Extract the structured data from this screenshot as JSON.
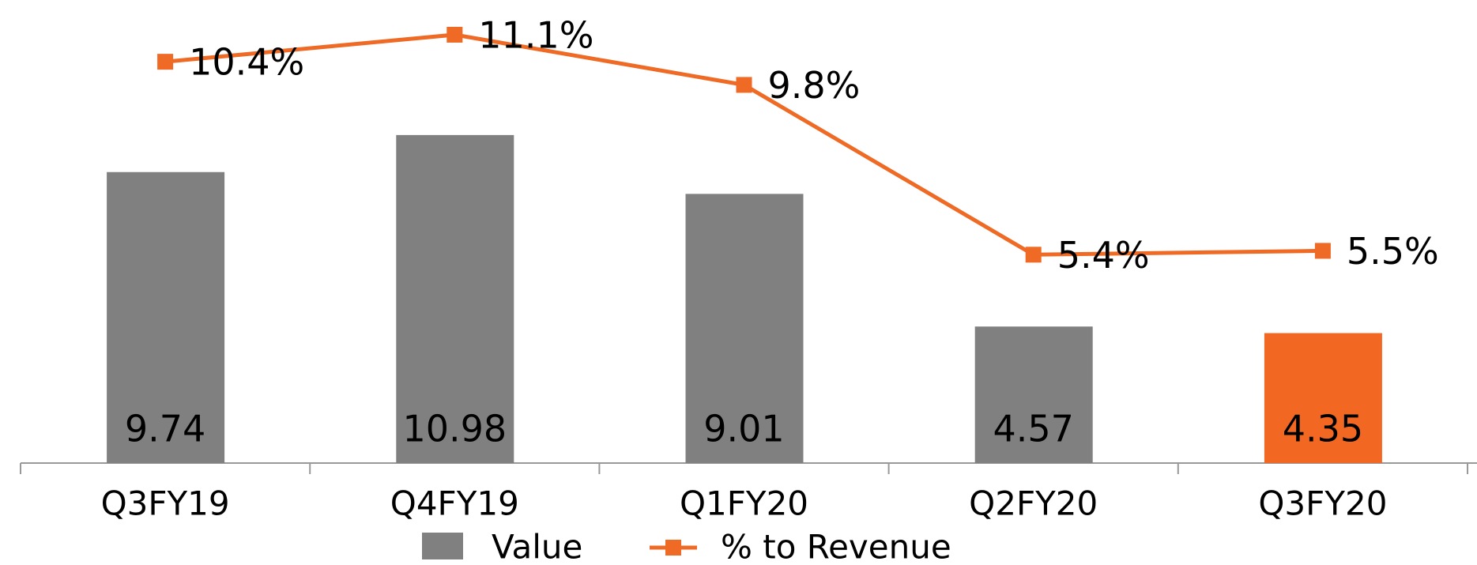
{
  "chart_data": {
    "type": "bar_line",
    "categories": [
      "Q3FY19",
      "Q4FY19",
      "Q1FY20",
      "Q2FY20",
      "Q3FY20"
    ],
    "ylim": [
      0,
      15.5
    ],
    "y2lim": [
      0,
      12
    ],
    "series": [
      {
        "name": "Value",
        "type": "bar",
        "color": "#808080",
        "colors": [
          "#808080",
          "#808080",
          "#808080",
          "#808080",
          "#f26722"
        ],
        "values": [
          9.74,
          10.98,
          9.01,
          4.57,
          4.35
        ]
      },
      {
        "name": "% to Revenue",
        "type": "line",
        "axis": "y2",
        "color": "#ee6a25",
        "values": [
          10.4,
          11.1,
          9.8,
          5.4,
          5.5
        ],
        "value_labels": [
          "10.4%",
          "11.1%",
          "9.8%",
          "5.4%",
          "5.5%"
        ]
      }
    ],
    "legend": "bottom"
  }
}
